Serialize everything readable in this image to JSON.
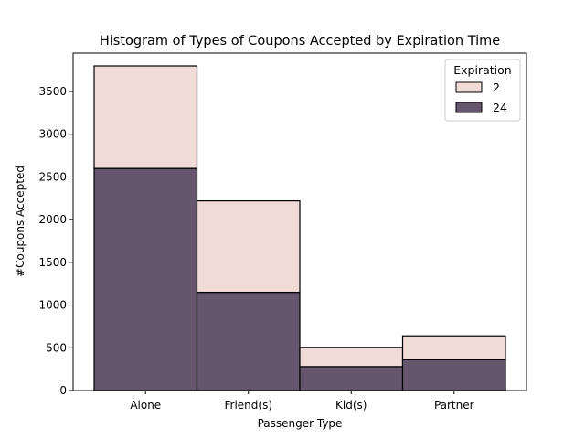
{
  "chart_data": {
    "type": "bar",
    "stacked": true,
    "title": "Histogram of Types of Coupons Accepted by Expiration Time",
    "xlabel": "Passenger Type",
    "ylabel": "#Coupons Accepted",
    "categories": [
      "Alone",
      "Friend(s)",
      "Kid(s)",
      "Partner"
    ],
    "series": [
      {
        "name": "24",
        "values": [
          2600,
          1150,
          280,
          360
        ],
        "color": "#65566e"
      },
      {
        "name": "2",
        "values": [
          1200,
          1070,
          225,
          280
        ],
        "color": "#f1dbd6"
      }
    ],
    "ylim": [
      0,
      3950
    ],
    "yticks": [
      0,
      500,
      1000,
      1500,
      2000,
      2500,
      3000,
      3500
    ],
    "grid": false,
    "legend": {
      "title": "Expiration",
      "placement": "top-right",
      "entries": [
        {
          "label": "2",
          "color": "#f1dbd6"
        },
        {
          "label": "24",
          "color": "#65566e"
        }
      ]
    }
  }
}
